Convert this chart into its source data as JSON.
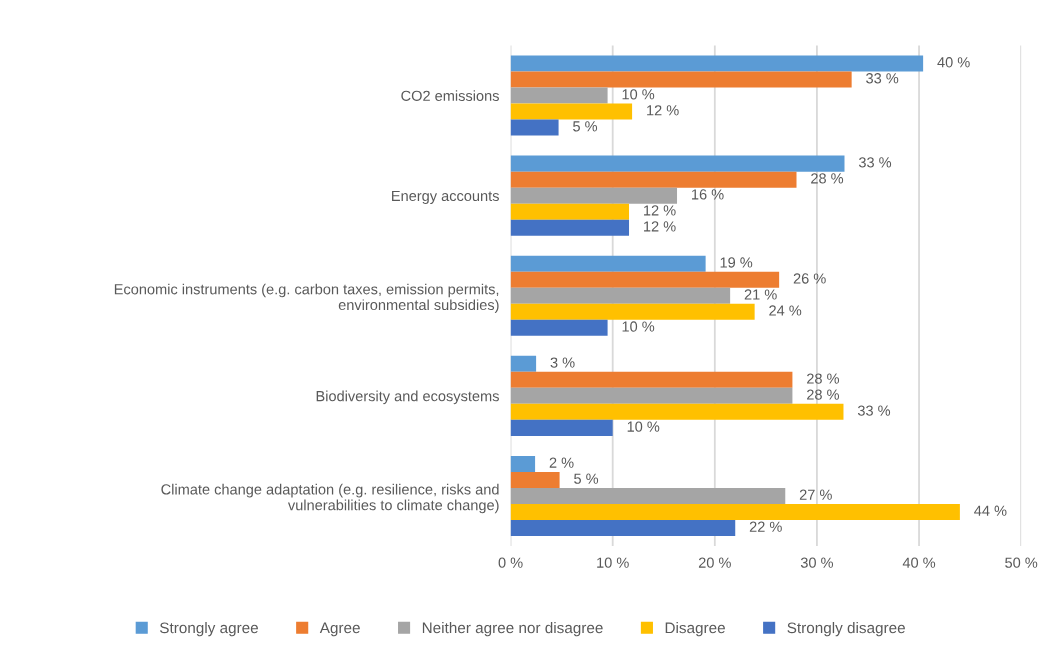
{
  "chart_data": {
    "type": "bar",
    "orientation": "horizontal",
    "categories": [
      "CO2 emissions",
      "Energy accounts",
      "Economic instruments (e.g. carbon taxes, emission permits,\nenvironmental subsidies)",
      "Biodiversity and ecosystems",
      "Climate change adaptation (e.g. resilience, risks and\nvulnerabilities to climate change)"
    ],
    "series": [
      {
        "name": "Strongly agree",
        "color": "#5b9bd5",
        "values": [
          40.4,
          32.7,
          19.1,
          2.5,
          2.4
        ],
        "value_labels": [
          "40 %",
          "33 %",
          "19 %",
          "3 %",
          "2 %"
        ]
      },
      {
        "name": "Agree",
        "color": "#ed7d31",
        "values": [
          33.4,
          28.0,
          26.3,
          27.6,
          4.8
        ],
        "value_labels": [
          "33 %",
          "28 %",
          "26 %",
          "28 %",
          "5 %"
        ]
      },
      {
        "name": "Neither agree nor disagree",
        "color": "#a5a5a5",
        "values": [
          9.5,
          16.3,
          21.5,
          27.6,
          26.9
        ],
        "value_labels": [
          "10 %",
          "16 %",
          "21 %",
          "28 %",
          "27 %"
        ]
      },
      {
        "name": "Disagree",
        "color": "#ffc000",
        "values": [
          11.9,
          11.6,
          23.9,
          32.6,
          44.0
        ],
        "value_labels": [
          "12 %",
          "12 %",
          "24 %",
          "33 %",
          "44 %"
        ]
      },
      {
        "name": "Strongly disagree",
        "color": "#4472c4",
        "values": [
          4.7,
          11.6,
          9.5,
          10.0,
          22.0
        ],
        "value_labels": [
          "5 %",
          "12 %",
          "10 %",
          "10 %",
          "22 %"
        ]
      }
    ],
    "xlim": [
      0,
      50
    ],
    "xticks": [
      {
        "value": 0,
        "label": "0 %"
      },
      {
        "value": 10,
        "label": "10 %"
      },
      {
        "value": 20,
        "label": "20 %"
      },
      {
        "value": 30,
        "label": "30 %"
      },
      {
        "value": 40,
        "label": "40 %"
      },
      {
        "value": 50,
        "label": "50 %"
      }
    ],
    "grid": "x",
    "legend": "bottom"
  }
}
